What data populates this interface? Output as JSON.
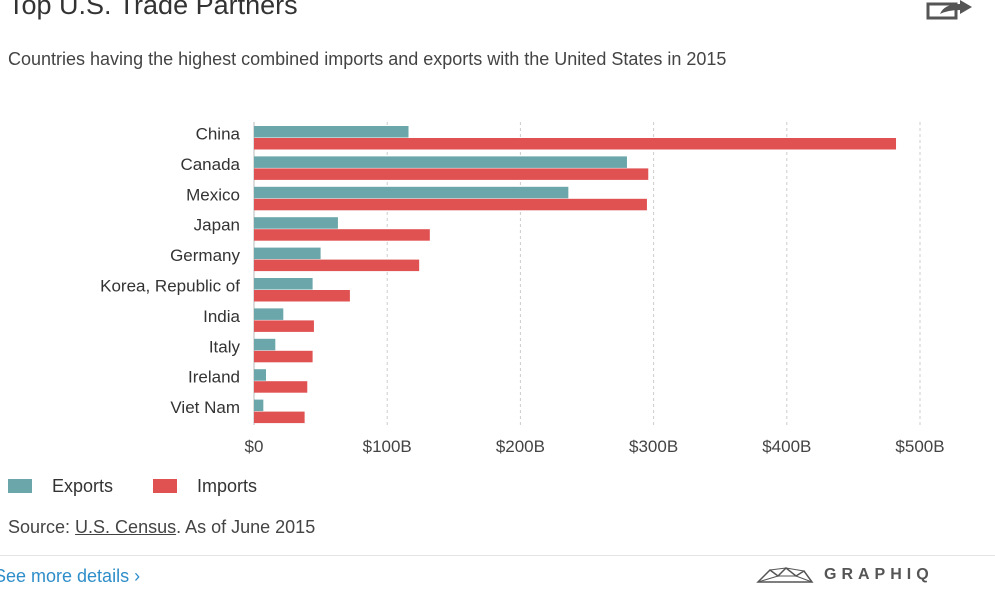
{
  "header": {
    "title": "Top U.S. Trade Partners",
    "subtitle": "Countries having the highest combined imports and exports with the United States in 2015",
    "share_icon": "share-icon"
  },
  "chart_data": {
    "type": "bar",
    "orientation": "horizontal",
    "title": "Top U.S. Trade Partners",
    "subtitle": "Countries having the highest combined imports and exports with the United States in 2015",
    "categories": [
      "China",
      "Canada",
      "Mexico",
      "Japan",
      "Germany",
      "Korea, Republic of",
      "India",
      "Italy",
      "Ireland",
      "Viet Nam"
    ],
    "series": [
      {
        "name": "Exports",
        "color": "#6aa6aa",
        "values": [
          116,
          280,
          236,
          63,
          50,
          44,
          22,
          16,
          9,
          7
        ]
      },
      {
        "name": "Imports",
        "color": "#e05252",
        "values": [
          482,
          296,
          295,
          132,
          124,
          72,
          45,
          44,
          40,
          38
        ]
      }
    ],
    "xaxis": {
      "ticks": [
        0,
        100,
        200,
        300,
        400,
        500
      ],
      "tick_labels": [
        "$0",
        "$100B",
        "$200B",
        "$300B",
        "$400B",
        "$500B"
      ],
      "range": [
        0,
        500
      ],
      "unit": "billions USD"
    },
    "xlabel": "",
    "ylabel": "",
    "grid": "vertical dashed",
    "legend": "bottom-left"
  },
  "legend": {
    "items": [
      {
        "label": "Exports",
        "color": "#6aa6aa"
      },
      {
        "label": "Imports",
        "color": "#e05252"
      }
    ]
  },
  "footer": {
    "source_prefix": "Source: ",
    "source_link": "U.S. Census",
    "source_suffix": ". As of June 2015",
    "details_link": "See more details ›",
    "brand": "GRAPHIQ",
    "brand_icon": "graphiq-logo-icon"
  }
}
